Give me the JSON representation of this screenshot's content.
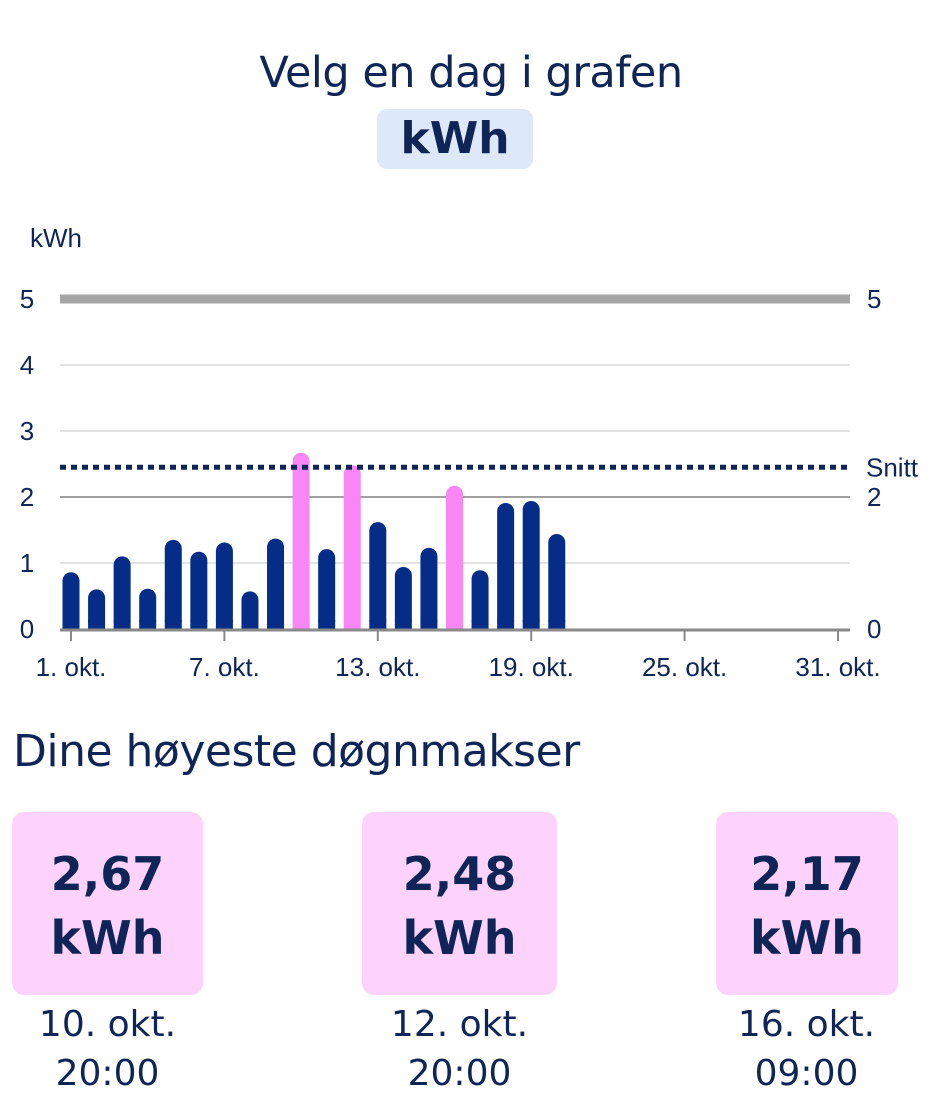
{
  "header": {
    "title": "Velg en dag i grafen",
    "unit_button": "kWh"
  },
  "chart_data": {
    "type": "bar",
    "ylabel": "kWh",
    "ylim": [
      0,
      5
    ],
    "y_ticks_left": [
      "0",
      "1",
      "2",
      "3",
      "4",
      "5"
    ],
    "y_ticks_right": [
      "0",
      "2",
      "5"
    ],
    "x_tick_labels": [
      "1. okt.",
      "7. okt.",
      "13. okt.",
      "19. okt.",
      "25. okt.",
      "31. okt."
    ],
    "x_tick_days": [
      1,
      7,
      13,
      19,
      25,
      31
    ],
    "average_label": "Snitt",
    "average_value": 2.45,
    "limit_value": 5,
    "days": [
      1,
      2,
      3,
      4,
      5,
      6,
      7,
      8,
      9,
      10,
      11,
      12,
      13,
      14,
      15,
      16,
      17,
      18,
      19,
      20
    ],
    "values": [
      0.86,
      0.6,
      1.1,
      0.61,
      1.35,
      1.17,
      1.31,
      0.57,
      1.37,
      2.67,
      1.21,
      2.48,
      1.62,
      0.94,
      1.23,
      2.17,
      0.89,
      1.91,
      1.94,
      1.44
    ],
    "highlight_days": [
      10,
      12,
      16
    ],
    "colors": {
      "bar": "#052d87",
      "highlight": "#f986f5",
      "average_line": "#0f2557",
      "limit_line": "#a5a5a5",
      "grid": "#e3e3e3",
      "axis": "#8a8a8a"
    }
  },
  "peaks": {
    "heading": "Dine høyeste døgnmakser",
    "items": [
      {
        "value": "2,67",
        "unit": "kWh",
        "date": "10. okt.",
        "time": "20:00"
      },
      {
        "value": "2,48",
        "unit": "kWh",
        "date": "12. okt.",
        "time": "20:00"
      },
      {
        "value": "2,17",
        "unit": "kWh",
        "date": "16. okt.",
        "time": "09:00"
      }
    ],
    "colors": {
      "card": "#fdd3fc",
      "text": "#0f2557"
    }
  }
}
